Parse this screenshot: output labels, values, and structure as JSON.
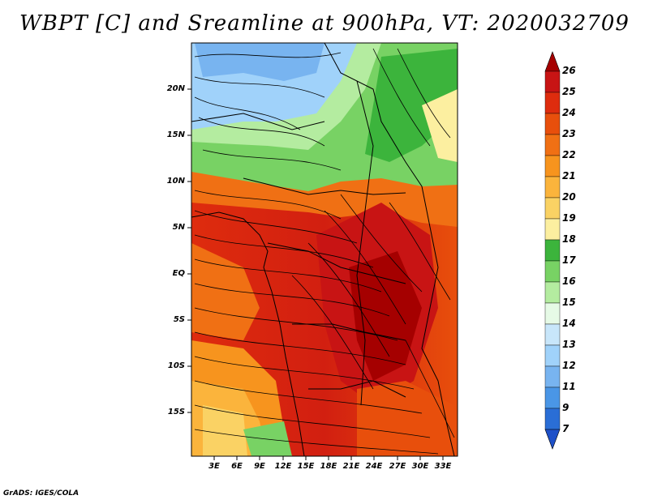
{
  "title": "WBPT [C] and Sreamline at 900hPa, VT: 2020032709",
  "credit": "GrADS: IGES/COLA",
  "map": {
    "lat_ticks": [
      "20N",
      "15N",
      "10N",
      "5N",
      "EQ",
      "5S",
      "10S",
      "15S"
    ],
    "lon_ticks": [
      "3E",
      "6E",
      "9E",
      "12E",
      "15E",
      "18E",
      "21E",
      "24E",
      "27E",
      "30E",
      "33E"
    ]
  },
  "colorbar": {
    "labels": [
      "26",
      "25",
      "24",
      "23",
      "22",
      "21",
      "20",
      "19",
      "18",
      "17",
      "16",
      "15",
      "14",
      "13",
      "12",
      "11",
      "9",
      "7"
    ],
    "colors": [
      "#a50000",
      "#c81414",
      "#de2c0e",
      "#e84f0c",
      "#f07014",
      "#f7941e",
      "#fbb43c",
      "#fad264",
      "#fcefa0",
      "#3cb43c",
      "#78d264",
      "#b4eca0",
      "#e6fae6",
      "#c8e6fa",
      "#a0d2fa",
      "#78b4f0",
      "#4a96e6",
      "#2a6ed6",
      "#1e50c8"
    ]
  }
}
